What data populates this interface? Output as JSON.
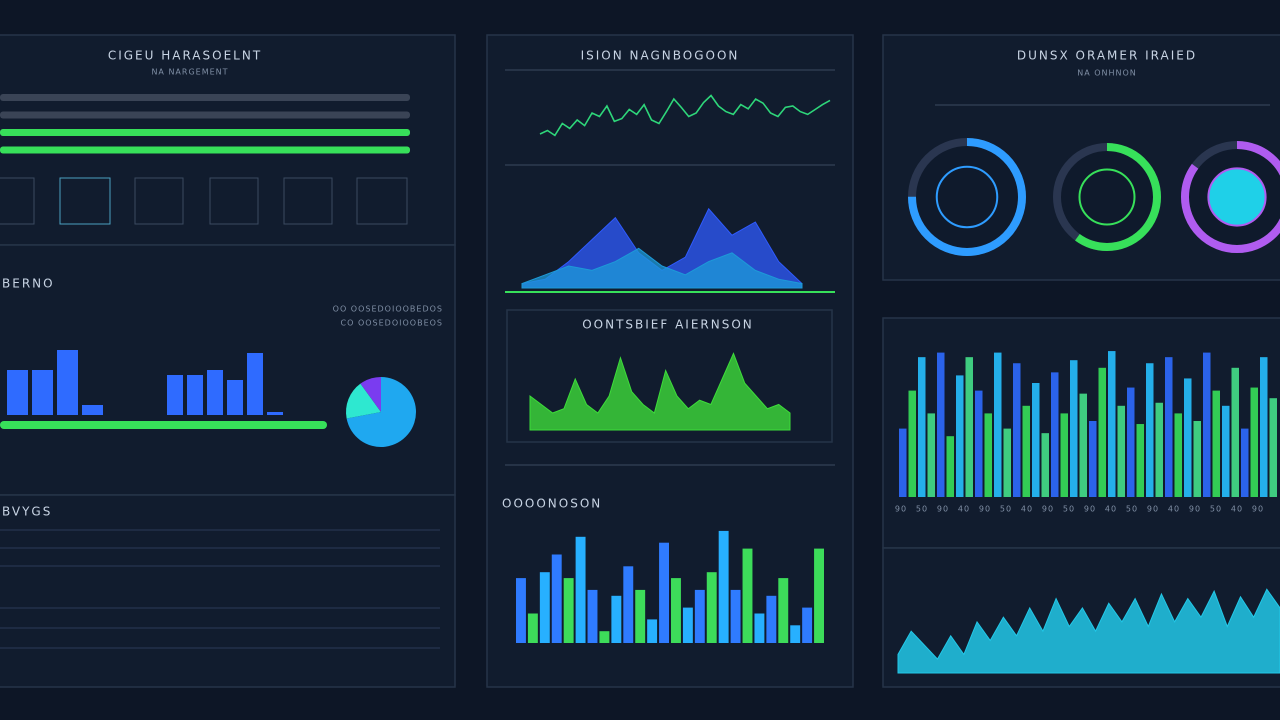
{
  "left": {
    "title": "CIGEU HARASOELNT",
    "subtitle": "NA NARGEMENT",
    "progress": {
      "values": [
        0,
        0,
        100,
        100
      ],
      "xlim": [
        0,
        100
      ],
      "color": "#37e05a"
    },
    "section_title": "BERNO",
    "notes": [
      "OO OOSEDOIOOBEDOS",
      "CO OOSEDOIOOBEOS"
    ],
    "bar_groups": [
      {
        "values": [
          45,
          45,
          65,
          10
        ],
        "color": "#2f6bff"
      },
      {
        "values": [
          40,
          40,
          45,
          35,
          62,
          3
        ],
        "color": "#2f6bff"
      }
    ],
    "bars_ylim": [
      0,
      70
    ],
    "meter": {
      "value": 100,
      "xlim": [
        0,
        100
      ],
      "color": "#37e05a"
    },
    "pie": {
      "values": [
        72,
        18,
        10
      ],
      "colors": [
        "#1fa8f0",
        "#2ee8d0",
        "#7a3cf0"
      ]
    },
    "table_title": "BVYGS"
  },
  "middle": {
    "line": {
      "title": "ISION NAGNBOGOON",
      "ylim": [
        0,
        100
      ],
      "color": "#2ed67a",
      "values": [
        30,
        35,
        28,
        45,
        38,
        50,
        42,
        60,
        55,
        70,
        48,
        52,
        65,
        58,
        72,
        50,
        45,
        62,
        80,
        68,
        55,
        60,
        75,
        85,
        70,
        62,
        58,
        72,
        66,
        80,
        74,
        60,
        55,
        68,
        70,
        62,
        58,
        65,
        72,
        78
      ]
    },
    "area": {
      "ylim": [
        0,
        100
      ],
      "series": [
        {
          "color": "#2f5bff",
          "values": [
            5,
            10,
            30,
            55,
            80,
            40,
            20,
            35,
            90,
            60,
            75,
            30,
            5
          ]
        },
        {
          "color": "#1d9ad8",
          "values": [
            5,
            15,
            25,
            20,
            30,
            45,
            25,
            15,
            30,
            40,
            20,
            10,
            5
          ]
        }
      ]
    },
    "green": {
      "title": "OONTSBIEF AIERNSON",
      "ylim": [
        0,
        100
      ],
      "color": "#3ddc3a",
      "values": [
        40,
        30,
        20,
        25,
        60,
        30,
        20,
        40,
        85,
        45,
        30,
        20,
        70,
        40,
        25,
        35,
        30,
        60,
        90,
        55,
        40,
        25,
        30,
        20
      ]
    },
    "bars": {
      "title": "OOOONOSON",
      "ylim": [
        0,
        100
      ],
      "colors": [
        "#2f7bff",
        "#3ddc5a",
        "#27b0ff"
      ],
      "values": [
        55,
        25,
        60,
        75,
        55,
        90,
        45,
        10,
        40,
        65,
        45,
        20,
        85,
        55,
        30,
        45,
        60,
        95,
        45,
        80,
        25,
        40,
        55,
        15,
        30,
        80
      ]
    }
  },
  "right": {
    "title": "DUNSX ORAMER IRAIED",
    "subtitle": "NA ONHNON",
    "rings": {
      "ylim": [
        0,
        100
      ],
      "values": [
        75,
        60,
        85
      ],
      "colors": [
        "#2e9cff",
        "#37e05a",
        "#b05cf0"
      ]
    },
    "bars": {
      "ylim": [
        0,
        100
      ],
      "colors": [
        "#2f6bff",
        "#37e05a",
        "#27c0ff",
        "#45e08a"
      ],
      "values": [
        45,
        70,
        92,
        55,
        95,
        40,
        80,
        92,
        70,
        55,
        95,
        45,
        88,
        60,
        75,
        42,
        82,
        55,
        90,
        68,
        50,
        85,
        96,
        60,
        72,
        48,
        88,
        62,
        92,
        55,
        78,
        50,
        95,
        70,
        60,
        85,
        45,
        72,
        92,
        65
      ],
      "labels": [
        "90",
        "50",
        "90",
        "40",
        "90",
        "50",
        "40",
        "90",
        "50",
        "90",
        "40",
        "50",
        "90",
        "40",
        "90",
        "50",
        "40",
        "90"
      ]
    },
    "area": {
      "ylim": [
        0,
        100
      ],
      "color": "#22c8e8",
      "values": [
        20,
        45,
        30,
        15,
        40,
        20,
        55,
        35,
        60,
        40,
        70,
        45,
        80,
        50,
        70,
        45,
        75,
        55,
        80,
        50,
        85,
        55,
        80,
        60,
        88,
        50,
        82,
        60,
        90,
        70
      ]
    }
  }
}
